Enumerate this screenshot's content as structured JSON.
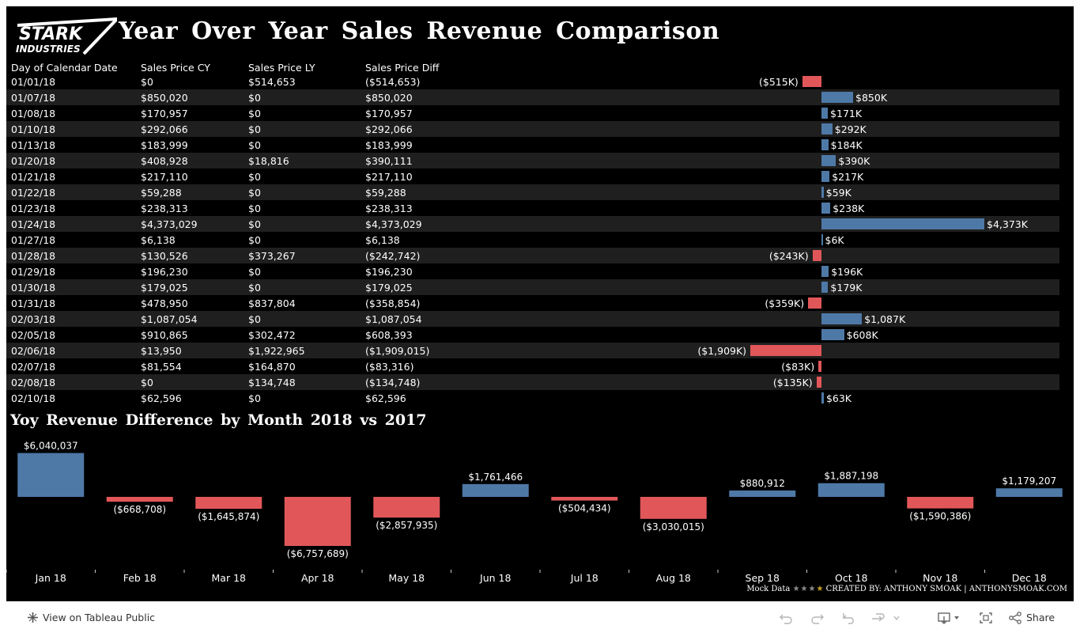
{
  "logo": {
    "line1": "STARK",
    "line2": "INDUSTRIES"
  },
  "title": "Year Over Year Sales Revenue Comparison",
  "table": {
    "headers": [
      "Day of Calendar Date",
      "Sales Price CY",
      "Sales Price LY",
      "Sales Price Diff"
    ],
    "rows": [
      {
        "date": "01/01/18",
        "cy": "$0",
        "ly": "$514,653",
        "diff": "($514,653)",
        "value": -514653,
        "label": "($515K)"
      },
      {
        "date": "01/07/18",
        "cy": "$850,020",
        "ly": "$0",
        "diff": "$850,020",
        "value": 850020,
        "label": "$850K"
      },
      {
        "date": "01/08/18",
        "cy": "$170,957",
        "ly": "$0",
        "diff": "$170,957",
        "value": 170957,
        "label": "$171K"
      },
      {
        "date": "01/10/18",
        "cy": "$292,066",
        "ly": "$0",
        "diff": "$292,066",
        "value": 292066,
        "label": "$292K"
      },
      {
        "date": "01/13/18",
        "cy": "$183,999",
        "ly": "$0",
        "diff": "$183,999",
        "value": 183999,
        "label": "$184K"
      },
      {
        "date": "01/20/18",
        "cy": "$408,928",
        "ly": "$18,816",
        "diff": "$390,111",
        "value": 390111,
        "label": "$390K"
      },
      {
        "date": "01/21/18",
        "cy": "$217,110",
        "ly": "$0",
        "diff": "$217,110",
        "value": 217110,
        "label": "$217K"
      },
      {
        "date": "01/22/18",
        "cy": "$59,288",
        "ly": "$0",
        "diff": "$59,288",
        "value": 59288,
        "label": "$59K"
      },
      {
        "date": "01/23/18",
        "cy": "$238,313",
        "ly": "$0",
        "diff": "$238,313",
        "value": 238313,
        "label": "$238K"
      },
      {
        "date": "01/24/18",
        "cy": "$4,373,029",
        "ly": "$0",
        "diff": "$4,373,029",
        "value": 4373029,
        "label": "$4,373K"
      },
      {
        "date": "01/27/18",
        "cy": "$6,138",
        "ly": "$0",
        "diff": "$6,138",
        "value": 6138,
        "label": "$6K"
      },
      {
        "date": "01/28/18",
        "cy": "$130,526",
        "ly": "$373,267",
        "diff": "($242,742)",
        "value": -242742,
        "label": "($243K)"
      },
      {
        "date": "01/29/18",
        "cy": "$196,230",
        "ly": "$0",
        "diff": "$196,230",
        "value": 196230,
        "label": "$196K"
      },
      {
        "date": "01/30/18",
        "cy": "$179,025",
        "ly": "$0",
        "diff": "$179,025",
        "value": 179025,
        "label": "$179K"
      },
      {
        "date": "01/31/18",
        "cy": "$478,950",
        "ly": "$837,804",
        "diff": "($358,854)",
        "value": -358854,
        "label": "($359K)"
      },
      {
        "date": "02/03/18",
        "cy": "$1,087,054",
        "ly": "$0",
        "diff": "$1,087,054",
        "value": 1087054,
        "label": "$1,087K"
      },
      {
        "date": "02/05/18",
        "cy": "$910,865",
        "ly": "$302,472",
        "diff": "$608,393",
        "value": 608393,
        "label": "$608K"
      },
      {
        "date": "02/06/18",
        "cy": "$13,950",
        "ly": "$1,922,965",
        "diff": "($1,909,015)",
        "value": -1909015,
        "label": "($1,909K)"
      },
      {
        "date": "02/07/18",
        "cy": "$81,554",
        "ly": "$164,870",
        "diff": "($83,316)",
        "value": -83316,
        "label": "($83K)"
      },
      {
        "date": "02/08/18",
        "cy": "$0",
        "ly": "$134,748",
        "diff": "($134,748)",
        "value": -134748,
        "label": "($135K)"
      },
      {
        "date": "02/10/18",
        "cy": "$62,596",
        "ly": "$0",
        "diff": "$62,596",
        "value": 62596,
        "label": "$63K"
      }
    ]
  },
  "chart_data": {
    "type": "bar",
    "title": "Yoy Revenue Difference by Month 2018 vs 2017",
    "categories": [
      "Jan 18",
      "Feb 18",
      "Mar 18",
      "Apr 18",
      "May 18",
      "Jun 18",
      "Jul 18",
      "Aug 18",
      "Sep 18",
      "Oct 18",
      "Nov 18",
      "Dec 18"
    ],
    "values": [
      6040037,
      -668708,
      -1645874,
      -6757689,
      -2857935,
      1761466,
      -504434,
      -3030015,
      880912,
      1887198,
      -1590386,
      1179207
    ],
    "value_labels": [
      "$6,040,037",
      "($668,708)",
      "($1,645,874)",
      "($6,757,689)",
      "($2,857,935)",
      "$1,761,466",
      "($504,434)",
      "($3,030,015)",
      "$880,912",
      "$1,887,198",
      "($1,590,386)",
      "$1,179,207"
    ],
    "colors": {
      "positive": "#4e79a7",
      "negative": "#e15759"
    },
    "grid": false
  },
  "footer": {
    "mock": "Mock Data",
    "stars": "★★★",
    "gold_star": "★",
    "credit": "CREATED BY: ANTHONY SMOAK | ANTHONYSMOAK.COM"
  },
  "toolbar": {
    "view_label": "View on Tableau Public",
    "share_label": "Share"
  }
}
